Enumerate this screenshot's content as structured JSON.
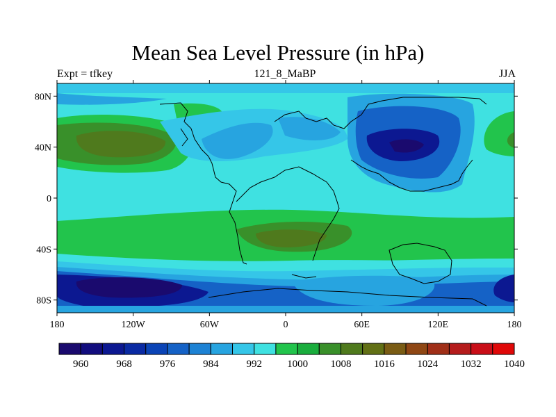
{
  "title": "Mean Sea Level Pressure (in hPa)",
  "experiment_label": "Expt = tfkey",
  "case_label": "121_8_MaBP",
  "season_label": "JJA",
  "map": {
    "lon_range": [
      -180,
      180
    ],
    "lat_range": [
      -90,
      90
    ],
    "lat_ticks": [
      {
        "value": 80,
        "label": "80N"
      },
      {
        "value": 40,
        "label": "40N"
      },
      {
        "value": 0,
        "label": "0"
      },
      {
        "value": -40,
        "label": "40S"
      },
      {
        "value": -80,
        "label": "80S"
      }
    ],
    "lon_ticks": [
      {
        "value": -180,
        "label": "180"
      },
      {
        "value": -120,
        "label": "120W"
      },
      {
        "value": -60,
        "label": "60W"
      },
      {
        "value": 0,
        "label": "0"
      },
      {
        "value": 60,
        "label": "60E"
      },
      {
        "value": 120,
        "label": "120E"
      },
      {
        "value": 180,
        "label": "180"
      }
    ],
    "field_regions": [
      {
        "name": "north-pacific-high",
        "level": "1008",
        "lon": -150,
        "lat": 40
      },
      {
        "name": "north-pacific-high-core",
        "level": "1016",
        "lon": -135,
        "lat": 42
      },
      {
        "name": "asian-low",
        "level": "976",
        "lon": 90,
        "lat": 38
      },
      {
        "name": "south-atlantic-high",
        "level": "1016",
        "lon": 5,
        "lat": -32
      },
      {
        "name": "southern-ocean-low",
        "level": "968",
        "lon": -130,
        "lat": -68
      }
    ]
  },
  "colorbar": {
    "colors": [
      "#1a0a6e",
      "#120d7e",
      "#0c1891",
      "#0a2aa3",
      "#0b44b6",
      "#1562c6",
      "#1d82d4",
      "#27a4e0",
      "#35c6e8",
      "#3fe1e1",
      "#22c44c",
      "#1aad3d",
      "#39902a",
      "#4f7a1d",
      "#627015",
      "#7a5c14",
      "#8f4714",
      "#a02f18",
      "#b51c1c",
      "#c90e18",
      "#e00808"
    ],
    "labels": [
      "960",
      "968",
      "976",
      "984",
      "992",
      "1000",
      "1008",
      "1016",
      "1024",
      "1032",
      "1040"
    ]
  }
}
